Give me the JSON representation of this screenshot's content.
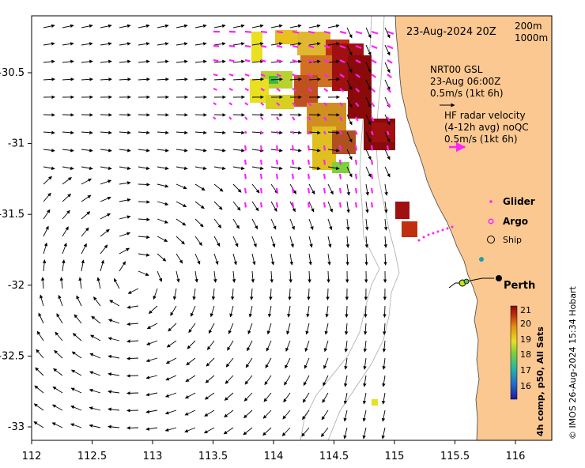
{
  "map": {
    "date_label": "23-Aug-2024 20Z",
    "contours": [
      "200m",
      "1000m"
    ],
    "lon_ticks": [
      "112",
      "112.5",
      "113",
      "113.5",
      "114",
      "114.5",
      "115",
      "115.5",
      "116"
    ],
    "lat_ticks": [
      "-30.5",
      "-31",
      "-31.5",
      "-32",
      "-32.5",
      "-33"
    ],
    "model_label": [
      "NRT00 GSL",
      "23-Aug 06:00Z",
      "0.5m/s (1kt 6h)"
    ],
    "radar_label": [
      "HF radar velocity",
      "(4-12h avg) noQC",
      "0.5m/s (1kt 6h)"
    ],
    "legend": {
      "glider": "Glider",
      "argo": "Argo",
      "ship": "Ship"
    },
    "city": "Perth",
    "colorbar": {
      "ticks": [
        "21",
        "20",
        "19",
        "18",
        "17",
        "16"
      ],
      "label": "4h comp, p50, All Sats"
    },
    "credit": "© IMOS 26-Aug-2024 15:34 Hobart",
    "colors": {
      "land": "#fbc892",
      "radar_vectors": "#ff22ff",
      "glider": "#ff22ff",
      "argo": "#ff22ff"
    }
  }
}
